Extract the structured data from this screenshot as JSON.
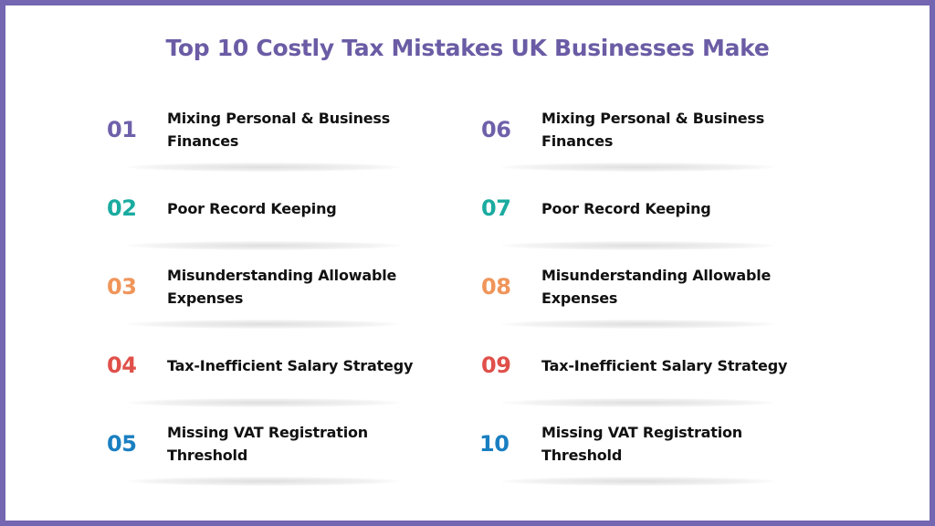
{
  "title": "Top 10 Costly Tax Mistakes UK Businesses Make",
  "colors": {
    "border": "#7466b0",
    "title": "#6b5ca5"
  },
  "items": [
    {
      "number": "01",
      "label": "Mixing Personal & Business Finances",
      "color": "#6f60aa"
    },
    {
      "number": "02",
      "label": "Poor Record Keeping",
      "color": "#1aaba0"
    },
    {
      "number": "03",
      "label": "Misunderstanding Allowable Expenses",
      "color": "#f0955a"
    },
    {
      "number": "04",
      "label": "Tax-Inefficient Salary Strategy",
      "color": "#e0504a"
    },
    {
      "number": "05",
      "label": "Missing VAT Registration Threshold",
      "color": "#1a7fc1"
    },
    {
      "number": "06",
      "label": "Mixing Personal & Business Finances",
      "color": "#6f60aa"
    },
    {
      "number": "07",
      "label": "Poor Record Keeping",
      "color": "#1aaba0"
    },
    {
      "number": "08",
      "label": "Misunderstanding Allowable Expenses",
      "color": "#f0955a"
    },
    {
      "number": "09",
      "label": "Tax-Inefficient Salary Strategy",
      "color": "#e0504a"
    },
    {
      "number": "10",
      "label": "Missing VAT Registration Threshold",
      "color": "#1a7fc1"
    }
  ]
}
